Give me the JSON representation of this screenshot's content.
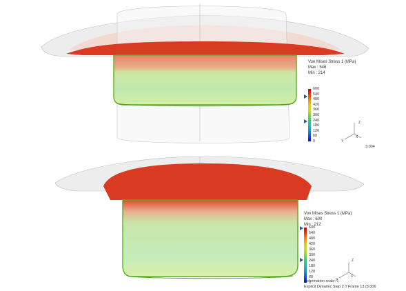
{
  "views": [
    {
      "legend": {
        "title": "Von Mises Stress 1 (MPa)",
        "max": "Max : 546",
        "min": "Min : 214",
        "ticks": [
          "600",
          "540",
          "480",
          "420",
          "360",
          "300",
          "240",
          "180",
          "120",
          "60",
          "0"
        ]
      },
      "axes": {
        "z": "Z",
        "y": "Y",
        "x": "X"
      },
      "frame_label": "3.004"
    },
    {
      "legend": {
        "title": "Von Mises Stress 1 (MPa)",
        "max": "Max : 600",
        "min": "Min : 212",
        "ticks": [
          "600",
          "540",
          "480",
          "420",
          "360",
          "300",
          "240",
          "180",
          "120",
          "60",
          "0"
        ]
      },
      "axes": {
        "z": "Z",
        "y": "Y",
        "x": "X"
      },
      "deformation": "Deformation scale: 1",
      "frame_label": "Explicit Dynamic Step 2 // Frame 13 (3.006"
    }
  ],
  "colors": {
    "scale": [
      "#cc0000",
      "#e83a10",
      "#f08a10",
      "#e6c81a",
      "#c8dc28",
      "#8cd23c",
      "#3cc878",
      "#28b4b4",
      "#1e8cd2",
      "#1450dc",
      "#0a14b4"
    ],
    "flange": "#e8e8e8",
    "red": "#d93a22"
  }
}
